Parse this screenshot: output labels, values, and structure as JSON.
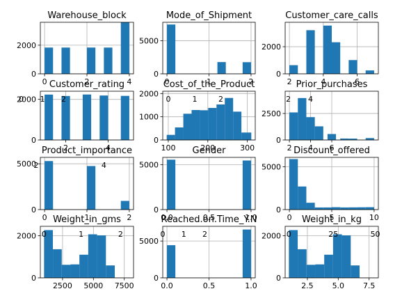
{
  "chart_data": [
    {
      "type": "bar",
      "title": "Warehouse_block",
      "xlim": [
        -0.2,
        4.2
      ],
      "ylim": [
        0,
        3600
      ],
      "xticks": [
        "0",
        "2",
        "4"
      ],
      "xtick_values": [
        0,
        2,
        4
      ],
      "yticks": [
        "0",
        "2000"
      ],
      "ytick_values": [
        0,
        2000
      ],
      "grid": true,
      "bins": [
        [
          0,
          0.4,
          1833
        ],
        [
          0.8,
          1.2,
          1833
        ],
        [
          1.6,
          2.0,
          0
        ],
        [
          2.0,
          2.4,
          1834
        ],
        [
          2.8,
          3.2,
          1833
        ],
        [
          3.6,
          4.0,
          3666
        ]
      ]
    },
    {
      "type": "bar",
      "title": "Mode_of_Shipment",
      "xlim": [
        -0.1,
        2.1
      ],
      "ylim": [
        0,
        7800
      ],
      "xticks": [
        "0",
        "1",
        "2"
      ],
      "xtick_values": [
        0,
        1,
        2
      ],
      "yticks": [
        "0",
        "5000"
      ],
      "ytick_values": [
        0,
        5000
      ],
      "grid": true,
      "bins": [
        [
          0,
          0.2,
          7462
        ],
        [
          1.2,
          1.4,
          1777
        ],
        [
          1.8,
          2.0,
          1760
        ]
      ]
    },
    {
      "type": "bar",
      "title": "Customer_care_calls",
      "xlim": [
        1.75,
        7.25
      ],
      "ylim": [
        0,
        3800
      ],
      "xticks": [
        "2",
        "4",
        "6"
      ],
      "xtick_values": [
        2,
        4,
        6
      ],
      "yticks": [
        "0",
        "2000"
      ],
      "ytick_values": [
        0,
        2000
      ],
      "grid": true,
      "bins": [
        [
          2,
          2.5,
          638
        ],
        [
          2.5,
          3.0,
          0
        ],
        [
          3.0,
          3.5,
          3217
        ],
        [
          3.5,
          4.0,
          0
        ],
        [
          4.0,
          4.5,
          3557
        ],
        [
          4.5,
          5.0,
          2328
        ],
        [
          5.5,
          6.0,
          1013
        ],
        [
          6.5,
          7.0,
          249
        ]
      ]
    },
    {
      "type": "bar",
      "title": "Customer_rating",
      "xlim": [
        0.8,
        5.2
      ],
      "ylim": [
        0,
        2400
      ],
      "xticks": [
        "2",
        "4"
      ],
      "xtick_values": [
        2,
        4
      ],
      "yticks": [
        "0",
        "2000"
      ],
      "ytick_values": [
        0,
        2000
      ],
      "grid": true,
      "bins": [
        [
          1.0,
          1.4,
          2235
        ],
        [
          1.8,
          2.2,
          2165
        ],
        [
          2.6,
          3.0,
          0
        ],
        [
          2.8,
          3.2,
          2239
        ],
        [
          3.6,
          4.0,
          2189
        ],
        [
          4.6,
          5.0,
          2171
        ]
      ]
    },
    {
      "type": "bar",
      "title": "Cost_of_the_Product",
      "xlim": [
        86,
        320
      ],
      "ylim": [
        0,
        2100
      ],
      "xticks": [
        "100",
        "200",
        "300"
      ],
      "xtick_values": [
        100,
        200,
        300
      ],
      "yticks": [
        "0",
        "1000",
        "2000"
      ],
      "ytick_values": [
        0,
        1000,
        2000
      ],
      "grid": true,
      "bins": [
        [
          96,
          117,
          220
        ],
        [
          117,
          138,
          540
        ],
        [
          138,
          159,
          1130
        ],
        [
          159,
          180,
          1290
        ],
        [
          180,
          201,
          1280
        ],
        [
          201,
          222,
          1380
        ],
        [
          222,
          243,
          1530
        ],
        [
          243,
          264,
          1810
        ],
        [
          264,
          285,
          1220
        ],
        [
          285,
          310,
          320
        ]
      ]
    },
    {
      "type": "bar",
      "title": "Prior_purchases",
      "xlim": [
        1.6,
        10.4
      ],
      "ylim": [
        0,
        4600
      ],
      "xticks": [
        "2",
        "4",
        "6"
      ],
      "xtick_values": [
        2,
        4,
        6
      ],
      "yticks": [
        "0",
        "2500"
      ],
      "ytick_values": [
        0,
        2500
      ],
      "grid": true,
      "bins": [
        [
          2,
          2.8,
          2599
        ],
        [
          2.8,
          3.6,
          3955
        ],
        [
          3.6,
          4.4,
          2155
        ],
        [
          4.4,
          5.2,
          1287
        ],
        [
          5.6,
          6.4,
          561
        ],
        [
          6.8,
          7.6,
          136
        ],
        [
          7.6,
          8.4,
          128
        ],
        [
          9.2,
          10.0,
          178
        ]
      ]
    },
    {
      "type": "bar",
      "title": "Product_importance",
      "xlim": [
        -0.1,
        2.1
      ],
      "ylim": [
        0,
        5700
      ],
      "xticks": [
        "0",
        "1",
        "2"
      ],
      "xtick_values": [
        0,
        1,
        2
      ],
      "yticks": [
        "0",
        "5000"
      ],
      "ytick_values": [
        0,
        5000
      ],
      "grid": true,
      "bins": [
        [
          0,
          0.2,
          5297
        ],
        [
          1.0,
          1.2,
          4754
        ],
        [
          1.8,
          2.0,
          948
        ]
      ]
    },
    {
      "type": "bar",
      "title": "Gender",
      "xlim": [
        -0.05,
        1.05
      ],
      "ylim": [
        0,
        5800
      ],
      "xticks": [
        "0.0",
        "0.5",
        "1.0"
      ],
      "xtick_values": [
        0,
        0.5,
        1
      ],
      "yticks": [
        "0",
        "5000"
      ],
      "ytick_values": [
        0,
        5000
      ],
      "grid": true,
      "bins": [
        [
          0,
          0.1,
          5545
        ],
        [
          0.9,
          1.0,
          5454
        ]
      ]
    },
    {
      "type": "bar",
      "title": "Discount_offered",
      "xlim": [
        -0.5,
        10.5
      ],
      "ylim": [
        0,
        6100
      ],
      "xticks": [
        "0",
        "5",
        "10"
      ],
      "xtick_values": [
        0,
        5,
        10
      ],
      "yticks": [
        "0",
        "5000"
      ],
      "ytick_values": [
        0,
        5000
      ],
      "grid": true,
      "bins": [
        [
          0,
          1,
          5900
        ],
        [
          1,
          2,
          2700
        ],
        [
          2,
          3,
          800
        ],
        [
          3,
          4,
          250
        ],
        [
          4,
          5,
          250
        ],
        [
          5,
          6,
          280
        ],
        [
          6,
          7,
          250
        ],
        [
          7,
          8,
          260
        ],
        [
          8,
          9,
          270
        ],
        [
          9,
          10,
          280
        ]
      ]
    },
    {
      "type": "bar",
      "title": "Weight_in_gms",
      "xlim": [
        700,
        8250
      ],
      "ylim": [
        0,
        2450
      ],
      "xticks": [
        "2500",
        "5000",
        "7500"
      ],
      "xtick_values": [
        2500,
        5000,
        7500
      ],
      "yticks": [
        "0",
        "2000"
      ],
      "ytick_values": [
        0,
        2000
      ],
      "grid": true,
      "bins": [
        [
          1001,
          1717,
          2270
        ],
        [
          1717,
          2433,
          1360
        ],
        [
          2433,
          3149,
          620
        ],
        [
          3149,
          3865,
          640
        ],
        [
          3865,
          4581,
          1100
        ],
        [
          4581,
          5297,
          2070
        ],
        [
          5297,
          6013,
          2020
        ],
        [
          6013,
          6729,
          590
        ],
        [
          6729,
          7445,
          0
        ],
        [
          7445,
          8161,
          0
        ]
      ]
    },
    {
      "type": "bar",
      "title": "Reached.on.Time_Y.N",
      "xlim": [
        -0.05,
        1.05
      ],
      "ylim": [
        0,
        7000
      ],
      "xticks": [
        "0.0",
        "0.5",
        "1.0"
      ],
      "xtick_values": [
        0,
        0.5,
        1
      ],
      "yticks": [
        "0",
        "5000"
      ],
      "ytick_values": [
        0,
        5000
      ],
      "grid": true,
      "bins": [
        [
          0,
          0.1,
          4436
        ],
        [
          0.9,
          1.0,
          6563
        ]
      ]
    },
    {
      "type": "bar",
      "title": "Weight_in_kg",
      "xlim": [
        0.7,
        8.25
      ],
      "ylim": [
        0,
        2450
      ],
      "xticks": [
        "2.5",
        "5.0",
        "7.5"
      ],
      "xtick_values": [
        2.5,
        5.0,
        7.5
      ],
      "yticks": [
        "0",
        "2000"
      ],
      "ytick_values": [
        0,
        2000
      ],
      "grid": true,
      "bins": [
        [
          1.001,
          1.717,
          2270
        ],
        [
          1.717,
          2.433,
          1360
        ],
        [
          2.433,
          3.149,
          620
        ],
        [
          3.149,
          3.865,
          640
        ],
        [
          3.865,
          4.581,
          1100
        ],
        [
          4.581,
          5.297,
          2070
        ],
        [
          5.297,
          6.013,
          2020
        ],
        [
          6.013,
          6.729,
          590
        ],
        [
          6.729,
          7.445,
          0
        ],
        [
          7.445,
          8.161,
          0
        ]
      ]
    }
  ],
  "colors": {
    "bar": "#1f77b4",
    "grid": "#b0b0b0",
    "axis": "#000000",
    "background": "#ffffff"
  },
  "overlay_ticks": [
    {
      "panel": 3,
      "labels": [
        "0",
        "1",
        "2"
      ],
      "values": [
        -0.1,
        0.9,
        1.9
      ]
    },
    {
      "panel": 4,
      "labels": [
        "0",
        "1",
        "2"
      ],
      "values": [
        100,
        167,
        233
      ]
    },
    {
      "panel": 5,
      "labels": [
        "2",
        "4"
      ],
      "values": [
        1.9,
        4.0
      ]
    },
    {
      "panel": 6,
      "labels": [
        "2",
        "4"
      ],
      "values": [
        -0.2,
        1.4
      ]
    },
    {
      "panel": 9,
      "labels": [
        "0",
        "1",
        "2"
      ],
      "values": [
        1000,
        4000,
        7200
      ]
    },
    {
      "panel": 10,
      "labels": [
        "0",
        "1",
        "2"
      ],
      "values": [
        -0.05,
        0.2,
        0.45
      ]
    },
    {
      "panel": 11,
      "labels": [
        "0",
        "25",
        "50"
      ],
      "values": [
        1.0,
        4.6,
        8.0
      ]
    }
  ]
}
